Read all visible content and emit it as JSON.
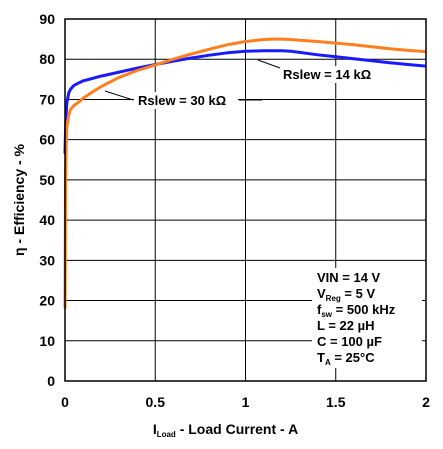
{
  "chart_data": {
    "type": "line",
    "xlabel": {
      "main_prefix": "I",
      "sub": "Load",
      "main_suffix": " - Load Current - A"
    },
    "ylabel": "η - Efficiency - %",
    "xlim": [
      0,
      2
    ],
    "ylim": [
      0,
      90
    ],
    "xticks": [
      0,
      0.5,
      1,
      1.5,
      2
    ],
    "xtick_labels": [
      "0",
      "0.5",
      "1",
      "1.5",
      "2"
    ],
    "yticks": [
      0,
      10,
      20,
      30,
      40,
      50,
      60,
      70,
      80,
      90
    ],
    "ytick_labels": [
      "0",
      "10",
      "20",
      "30",
      "40",
      "50",
      "60",
      "70",
      "80",
      "90"
    ],
    "grid": true,
    "series": [
      {
        "name": "Rslew = 14 kΩ",
        "color": "#1a1aff",
        "x": [
          0.0,
          0.003,
          0.006,
          0.01,
          0.02,
          0.03,
          0.05,
          0.08,
          0.1,
          0.15,
          0.2,
          0.3,
          0.4,
          0.5,
          0.6,
          0.7,
          0.8,
          0.9,
          1.0,
          1.1,
          1.2,
          1.25,
          1.3,
          1.4,
          1.5,
          1.6,
          1.7,
          1.8,
          1.9,
          2.0
        ],
        "y": [
          56.5,
          62,
          66,
          69,
          71.5,
          72.5,
          73.5,
          74.2,
          74.6,
          75.2,
          75.8,
          76.8,
          77.8,
          78.7,
          79.5,
          80.3,
          81.0,
          81.6,
          82.0,
          82.1,
          82.1,
          82.0,
          81.7,
          81.1,
          80.6,
          80.1,
          79.6,
          79.1,
          78.7,
          78.3
        ]
      },
      {
        "name": "Rslew = 30 kΩ",
        "color": "#ff7f1f",
        "x": [
          0.0,
          0.003,
          0.006,
          0.01,
          0.02,
          0.03,
          0.05,
          0.08,
          0.1,
          0.15,
          0.2,
          0.3,
          0.4,
          0.5,
          0.6,
          0.7,
          0.8,
          0.9,
          1.0,
          1.1,
          1.15,
          1.2,
          1.25,
          1.3,
          1.4,
          1.5,
          1.6,
          1.7,
          1.8,
          1.9,
          2.0
        ],
        "y": [
          18,
          50,
          58,
          63,
          66,
          67.5,
          68.5,
          69.5,
          70.3,
          71.8,
          73.2,
          75.5,
          77.2,
          78.6,
          80.0,
          81.3,
          82.5,
          83.6,
          84.4,
          84.9,
          85.0,
          85.0,
          84.9,
          84.7,
          84.4,
          84.0,
          83.6,
          83.1,
          82.6,
          82.2,
          81.9
        ]
      }
    ],
    "annotations": {
      "label_14k": "Rslew = 14 kΩ",
      "label_30k": "Rslew = 30 kΩ",
      "conditions": [
        {
          "main": "VIN = 14 V"
        },
        {
          "main": "V",
          "sub": "Reg",
          "tail": " = 5 V"
        },
        {
          "main": "f",
          "sub": "sw",
          "tail": " = 500 kHz"
        },
        {
          "main": "L = 22 µH"
        },
        {
          "main": "C = 100 µF"
        },
        {
          "main": "T",
          "sub": "A",
          "tail": " = 25°C"
        }
      ]
    }
  }
}
